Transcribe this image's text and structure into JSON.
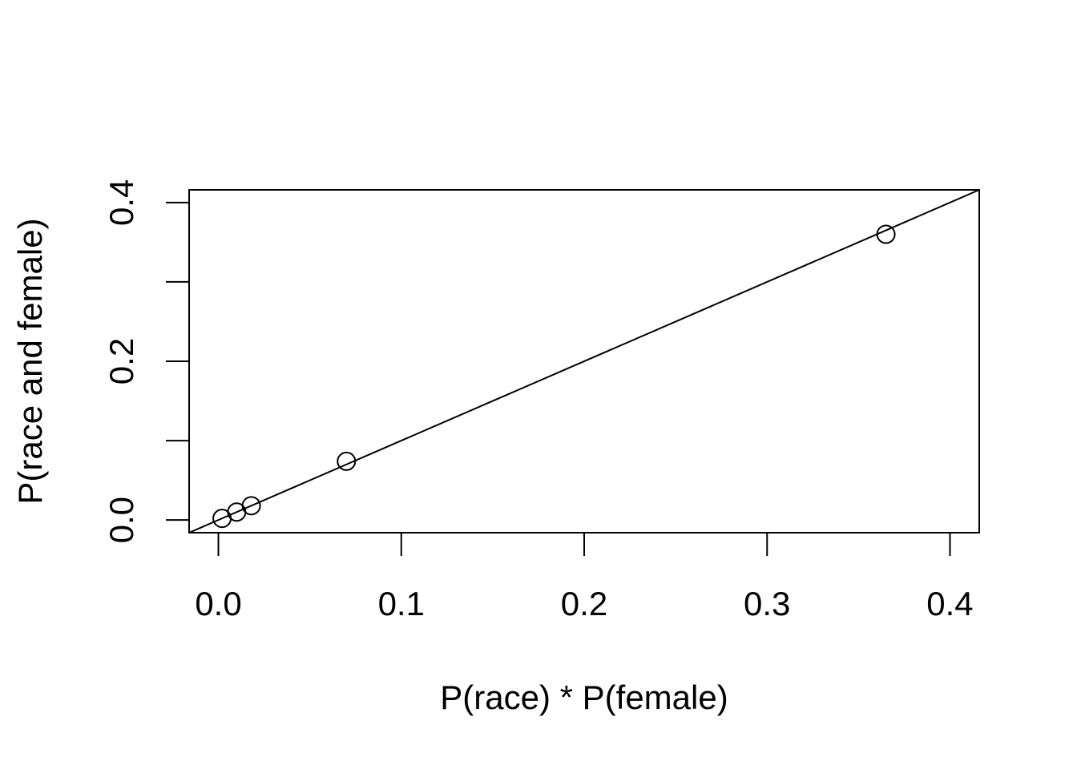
{
  "chart_data": {
    "type": "scatter",
    "title": "",
    "xlabel": "P(race) * P(female)",
    "ylabel": "P(race and female)",
    "xlim": [
      -0.016,
      0.416
    ],
    "ylim": [
      -0.016,
      0.416
    ],
    "x_ticks": [
      0.0,
      0.1,
      0.2,
      0.3,
      0.4
    ],
    "x_tick_labels": [
      "0.0",
      "0.1",
      "0.2",
      "0.3",
      "0.4"
    ],
    "y_ticks": [
      0.0,
      0.1,
      0.2,
      0.3,
      0.4
    ],
    "y_tick_labels": [
      "0.0",
      "",
      "0.2",
      "",
      "0.4"
    ],
    "points": [
      {
        "x": 0.002,
        "y": 0.002
      },
      {
        "x": 0.01,
        "y": 0.01
      },
      {
        "x": 0.018,
        "y": 0.018
      },
      {
        "x": 0.07,
        "y": 0.074
      },
      {
        "x": 0.365,
        "y": 0.36
      }
    ],
    "reference_line": {
      "intercept": 0,
      "slope": 1
    },
    "grid": false,
    "legend": false
  }
}
